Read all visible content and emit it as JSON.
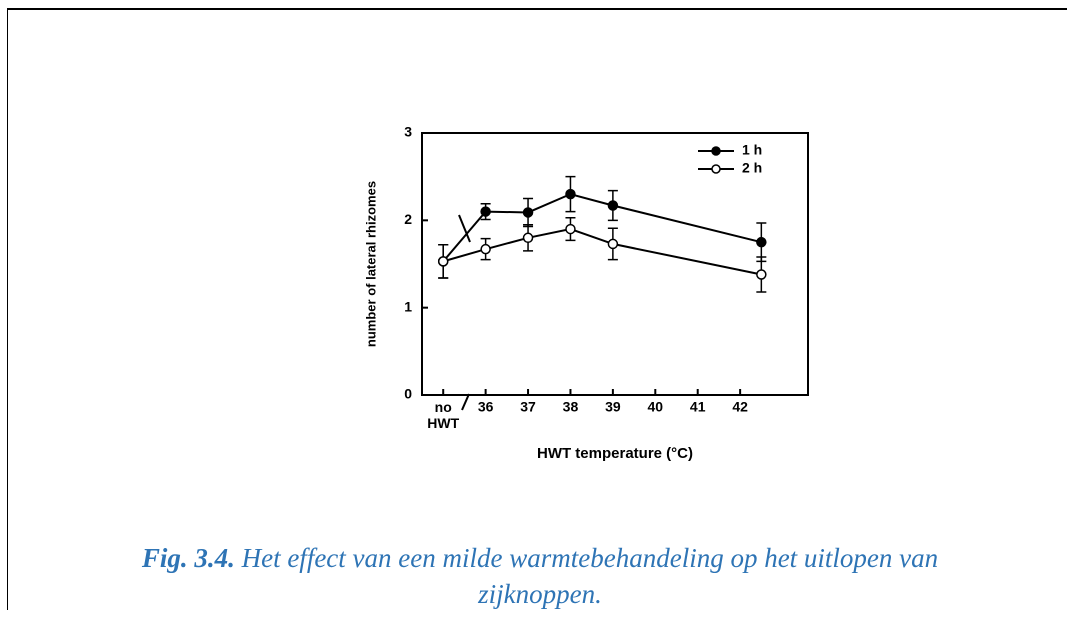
{
  "chart_data": {
    "type": "line",
    "ylabel": "number of lateral rhizomes",
    "xlabel": "HWT temperature (°C)",
    "x": [
      35,
      36,
      37,
      38,
      39,
      42.5
    ],
    "xlim": [
      34.5,
      43.6
    ],
    "xticks": [
      {
        "value": 35,
        "label": "no HWT"
      },
      36,
      37,
      38,
      39,
      40,
      41,
      42
    ],
    "ylim": [
      0,
      3
    ],
    "yticks": [
      0,
      1,
      2,
      3
    ],
    "legend": "upper right",
    "series": [
      {
        "name": "1 h",
        "color": "#000000",
        "marker_fill": "#000000",
        "values": [
          1.53,
          2.1,
          2.09,
          2.3,
          2.17,
          1.75
        ],
        "errors": [
          0.19,
          0.09,
          0.16,
          0.2,
          0.17,
          0.22
        ]
      },
      {
        "name": "2 h",
        "color": "#000000",
        "marker_fill": "#ffffff",
        "values": [
          1.53,
          1.67,
          1.8,
          1.9,
          1.73,
          1.38
        ],
        "errors": [
          0.19,
          0.12,
          0.15,
          0.13,
          0.18,
          0.2
        ]
      }
    ]
  },
  "caption": {
    "label": "Fig. 3.4.",
    "text": "Het effect van een milde warmtebehandeling op het uitlopen van zijknoppen."
  }
}
